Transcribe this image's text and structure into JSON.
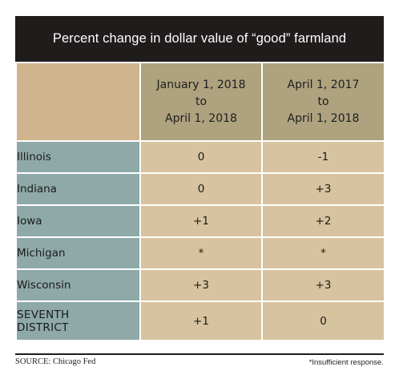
{
  "title": "Percent change in dollar value of “good” farmland",
  "columns": [
    {
      "lines": [
        "January 1, 2018",
        "to",
        "April 1, 2018"
      ]
    },
    {
      "lines": [
        "April 1, 2017",
        "to",
        "April 1, 2018"
      ]
    }
  ],
  "rows": [
    {
      "label": [
        "Illinois"
      ],
      "values": [
        "0",
        "-1"
      ]
    },
    {
      "label": [
        "Indiana"
      ],
      "values": [
        "0",
        "+3"
      ]
    },
    {
      "label": [
        "Iowa"
      ],
      "values": [
        "+1",
        "+2"
      ]
    },
    {
      "label": [
        "Michigan"
      ],
      "values": [
        "*",
        "*"
      ]
    },
    {
      "label": [
        "Wisconsin"
      ],
      "values": [
        "+3",
        "+3"
      ]
    },
    {
      "label": [
        "SEVENTH",
        "DISTRICT"
      ],
      "values": [
        "+1",
        "0"
      ]
    }
  ],
  "source": "SOURCE: Chicago Fed",
  "note": "*Insufficient response.",
  "colors": {
    "title_bg": "#1f1c1b",
    "header_col_bg": "#aea27f",
    "corner_bg": "#cfb48d",
    "state_bg": "#8ea9a8",
    "value_bg": "#d7c39f"
  },
  "chart_data": {
    "type": "table",
    "title": "Percent change in dollar value of “good” farmland",
    "columns": [
      "January 1, 2018 to April 1, 2018",
      "April 1, 2017 to April 1, 2018"
    ],
    "rows": [
      "Illinois",
      "Indiana",
      "Iowa",
      "Michigan",
      "Wisconsin",
      "SEVENTH DISTRICT"
    ],
    "values": [
      [
        "0",
        "-1"
      ],
      [
        "0",
        "+3"
      ],
      [
        "+1",
        "+2"
      ],
      [
        "*",
        "*"
      ],
      [
        "+3",
        "+3"
      ],
      [
        "+1",
        "0"
      ]
    ]
  }
}
